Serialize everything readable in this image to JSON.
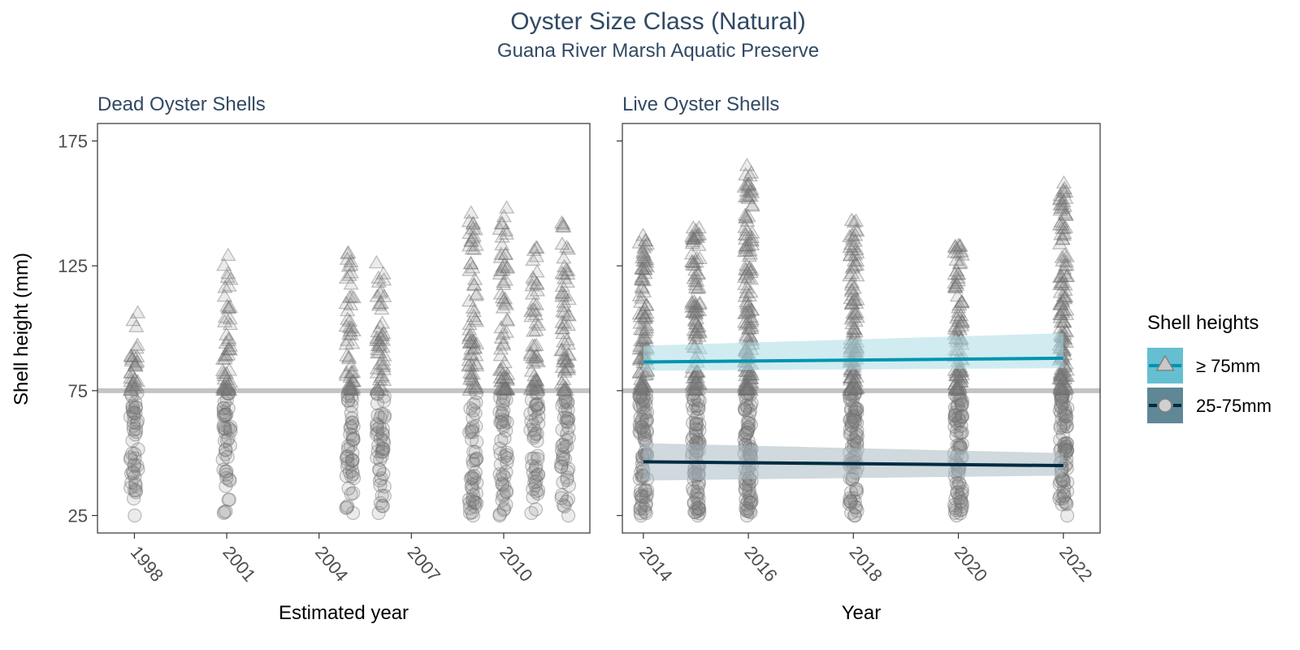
{
  "title": "Oyster Size Class (Natural)",
  "subtitle": "Guana River Marsh Aquatic Preserve",
  "y_axis_label": "Shell height (mm)",
  "legend": {
    "title": "Shell heights",
    "items": [
      {
        "label": "≥ 75mm",
        "shape": "triangle",
        "fill": "#65BFD1",
        "line": "#0094B0"
      },
      {
        "label": "25-75mm",
        "shape": "circle",
        "fill": "#5F8796",
        "line": "#002B40"
      }
    ]
  },
  "colors": {
    "title_text": "#314963",
    "reference_line": "#c4c4c4",
    "points": "#7f7f7f",
    "large_trend": "#0094B0",
    "large_band": "#A9DCE6",
    "small_trend": "#002B40",
    "small_band": "#A7B9C2"
  },
  "chart_data": [
    {
      "type": "scatter",
      "panel_title": "Dead Oyster Shells",
      "xlabel": "Estimated year",
      "ylabel": "Shell height (mm)",
      "xlim": [
        1996.8,
        2012.8
      ],
      "ylim": [
        18,
        182
      ],
      "x_ticks": [
        1998,
        2001,
        2004,
        2007,
        2010
      ],
      "y_ticks": [
        25,
        75,
        125,
        175
      ],
      "reference_line_y": 75,
      "grid": false,
      "series": [
        {
          "size_class": "25-75mm",
          "shape": "circle",
          "groups": [
            {
              "x": 1998,
              "min": 25,
              "max": 74
            },
            {
              "x": 2001,
              "min": 26,
              "max": 74
            },
            {
              "x": 2005,
              "min": 26,
              "max": 74
            },
            {
              "x": 2006,
              "min": 26,
              "max": 74
            },
            {
              "x": 2009,
              "min": 25,
              "max": 74
            },
            {
              "x": 2010,
              "min": 25,
              "max": 74
            },
            {
              "x": 2011,
              "min": 26,
              "max": 74
            },
            {
              "x": 2012,
              "min": 25,
              "max": 74
            }
          ]
        },
        {
          "size_class": "≥ 75mm",
          "shape": "triangle",
          "groups": [
            {
              "x": 1998,
              "min": 75,
              "max": 106
            },
            {
              "x": 2001,
              "min": 75,
              "max": 129
            },
            {
              "x": 2005,
              "min": 75,
              "max": 130
            },
            {
              "x": 2006,
              "min": 75,
              "max": 126
            },
            {
              "x": 2009,
              "min": 75,
              "max": 146
            },
            {
              "x": 2010,
              "min": 75,
              "max": 148
            },
            {
              "x": 2011,
              "min": 75,
              "max": 132
            },
            {
              "x": 2012,
              "min": 75,
              "max": 142
            }
          ]
        }
      ]
    },
    {
      "type": "scatter",
      "panel_title": "Live Oyster Shells",
      "xlabel": "Year",
      "ylabel": "Shell height (mm)",
      "xlim": [
        2013.6,
        2022.7
      ],
      "ylim": [
        18,
        182
      ],
      "x_ticks": [
        2014,
        2016,
        2018,
        2020,
        2022
      ],
      "y_ticks": [
        25,
        75,
        125,
        175
      ],
      "reference_line_y": 75,
      "grid": false,
      "series": [
        {
          "size_class": "25-75mm",
          "shape": "circle",
          "groups": [
            {
              "x": 2014,
              "min": 25,
              "max": 74
            },
            {
              "x": 2015,
              "min": 25,
              "max": 74
            },
            {
              "x": 2016,
              "min": 25,
              "max": 74
            },
            {
              "x": 2018,
              "min": 25,
              "max": 74
            },
            {
              "x": 2020,
              "min": 25,
              "max": 74
            },
            {
              "x": 2022,
              "min": 25,
              "max": 74
            }
          ]
        },
        {
          "size_class": "≥ 75mm",
          "shape": "triangle",
          "groups": [
            {
              "x": 2014,
              "min": 75,
              "max": 137
            },
            {
              "x": 2015,
              "min": 75,
              "max": 140
            },
            {
              "x": 2016,
              "min": 75,
              "max": 165
            },
            {
              "x": 2018,
              "min": 75,
              "max": 143
            },
            {
              "x": 2020,
              "min": 75,
              "max": 133
            },
            {
              "x": 2022,
              "min": 75,
              "max": 158
            }
          ]
        }
      ],
      "trends": [
        {
          "size_class": "≥ 75mm",
          "x": [
            2014,
            2022
          ],
          "y": [
            86.5,
            88
          ],
          "band_lower": [
            83,
            84
          ],
          "band_upper": [
            93,
            98
          ]
        },
        {
          "size_class": "25-75mm",
          "x": [
            2014,
            2022
          ],
          "y": [
            46.5,
            45
          ],
          "band_lower": [
            39,
            41
          ],
          "band_upper": [
            54,
            50
          ]
        }
      ]
    }
  ]
}
